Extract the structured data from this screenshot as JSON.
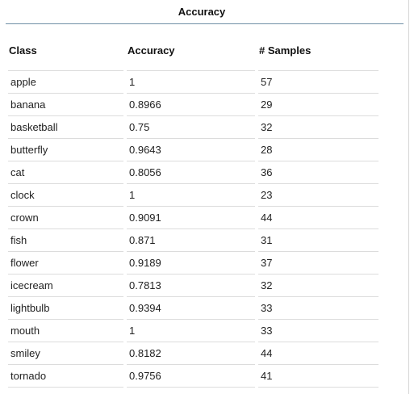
{
  "panel": {
    "title": "Accuracy"
  },
  "table": {
    "headers": [
      "Class",
      "Accuracy",
      "# Samples"
    ],
    "rows": [
      {
        "class": "apple",
        "accuracy": "1",
        "samples": "57"
      },
      {
        "class": "banana",
        "accuracy": "0.8966",
        "samples": "29"
      },
      {
        "class": "basketball",
        "accuracy": "0.75",
        "samples": "32"
      },
      {
        "class": "butterfly",
        "accuracy": "0.9643",
        "samples": "28"
      },
      {
        "class": "cat",
        "accuracy": "0.8056",
        "samples": "36"
      },
      {
        "class": "clock",
        "accuracy": "1",
        "samples": "23"
      },
      {
        "class": "crown",
        "accuracy": "0.9091",
        "samples": "44"
      },
      {
        "class": "fish",
        "accuracy": "0.871",
        "samples": "31"
      },
      {
        "class": "flower",
        "accuracy": "0.9189",
        "samples": "37"
      },
      {
        "class": "icecream",
        "accuracy": "0.7813",
        "samples": "32"
      },
      {
        "class": "lightbulb",
        "accuracy": "0.9394",
        "samples": "33"
      },
      {
        "class": "mouth",
        "accuracy": "1",
        "samples": "33"
      },
      {
        "class": "smiley",
        "accuracy": "0.8182",
        "samples": "44"
      },
      {
        "class": "tornado",
        "accuracy": "0.9756",
        "samples": "41"
      }
    ]
  },
  "colors": {
    "title_rule": "#6f8fa6",
    "row_rule": "#dcdcdc",
    "panel_border": "#d6d6d6"
  }
}
